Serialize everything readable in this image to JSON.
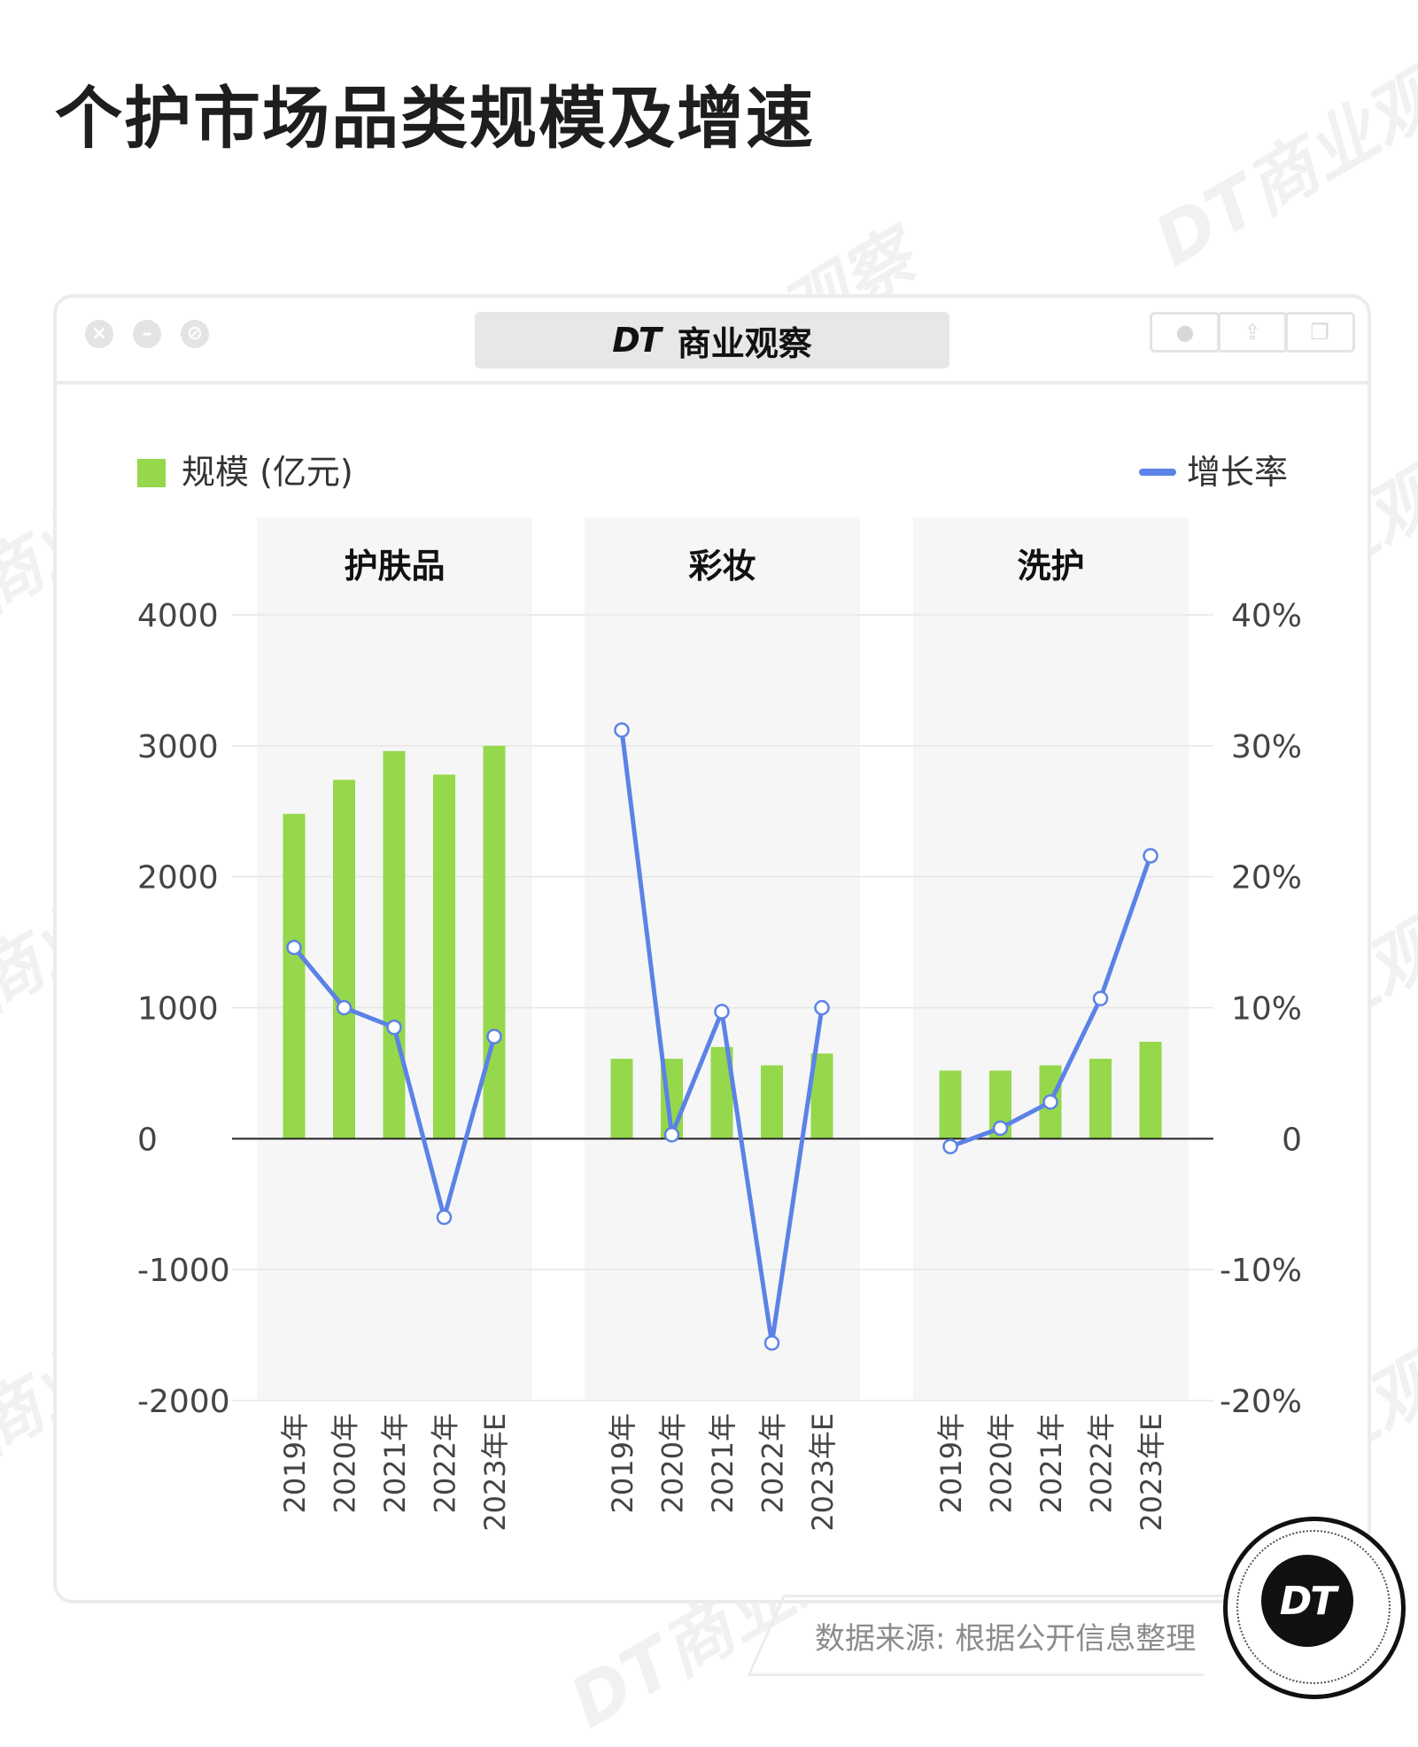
{
  "page": {
    "title": "个护市场品类规模及增速",
    "source": "数据来源: 根据公开信息整理",
    "watermark": "DT商业观察"
  },
  "window": {
    "brand_dt": "DT",
    "brand_name": "商业观察",
    "close_icon": "close-icon",
    "minimize_icon": "minimize-icon",
    "disabled_icon": "no-entry-icon",
    "record_icon": "record-icon",
    "share_icon": "share-icon",
    "copy_icon": "copy-icon"
  },
  "seal": {
    "text": "DT"
  },
  "colors": {
    "bar": "#95d84b",
    "line": "#5b82e6",
    "panel": "#f6f6f6",
    "grid": "#e6e6e6",
    "axis_text": "#444444"
  },
  "chart_data": {
    "type": "bar",
    "legend": {
      "bar_label": "规模 (亿元)",
      "line_label": "增长率"
    },
    "y_left": {
      "min": -2000,
      "max": 4000,
      "ticks": [
        -2000,
        -1000,
        0,
        1000,
        2000,
        3000,
        4000
      ],
      "tick_labels": [
        "-2000",
        "-1000",
        "0",
        "1000",
        "2000",
        "3000",
        "4000"
      ]
    },
    "y_right": {
      "min": -20,
      "max": 40,
      "ticks": [
        -20,
        -10,
        0,
        10,
        20,
        30,
        40
      ],
      "tick_labels": [
        "-20%",
        "-10%",
        "0",
        "10%",
        "20%",
        "30%",
        "40%"
      ]
    },
    "categories": [
      "2019年",
      "2020年",
      "2021年",
      "2022年",
      "2023年E"
    ],
    "groups": [
      {
        "name": "护肤品",
        "size": [
          2480,
          2740,
          2960,
          2780,
          3000
        ],
        "growth": [
          14.6,
          10.0,
          8.5,
          -6.0,
          7.8
        ]
      },
      {
        "name": "彩妆",
        "size": [
          610,
          610,
          700,
          560,
          650
        ],
        "growth": [
          31.2,
          0.3,
          9.7,
          -15.6,
          10.0
        ]
      },
      {
        "name": "洗护",
        "size": [
          520,
          520,
          560,
          610,
          740
        ],
        "growth": [
          -0.6,
          0.8,
          2.8,
          10.7,
          21.6
        ]
      }
    ]
  }
}
